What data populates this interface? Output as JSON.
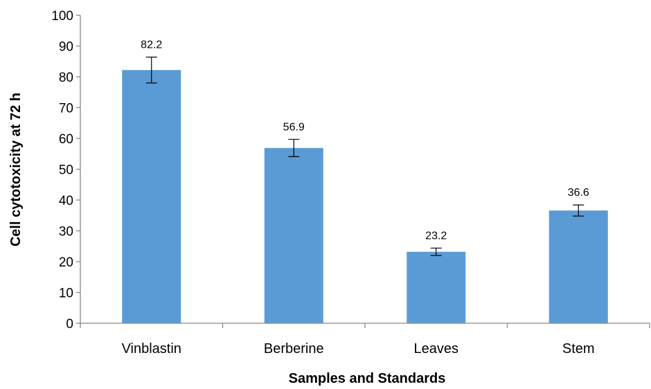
{
  "chart_data": {
    "type": "bar",
    "title": "",
    "xlabel": "Samples and Standards",
    "ylabel": "Cell cytotoxicity at 72 h",
    "ylim": [
      0,
      100
    ],
    "yticks": [
      0,
      10,
      20,
      30,
      40,
      50,
      60,
      70,
      80,
      90,
      100
    ],
    "grid": false,
    "legend": "none",
    "bar_color": "#5B9BD5",
    "categories": [
      "Vinblastin",
      "Berberine",
      "Leaves",
      "Stem"
    ],
    "values": [
      82.2,
      56.9,
      23.2,
      36.6
    ],
    "value_labels": [
      "82.2",
      "56.9",
      "23.2",
      "36.6"
    ],
    "error": [
      4.2,
      2.8,
      1.2,
      1.8
    ]
  }
}
